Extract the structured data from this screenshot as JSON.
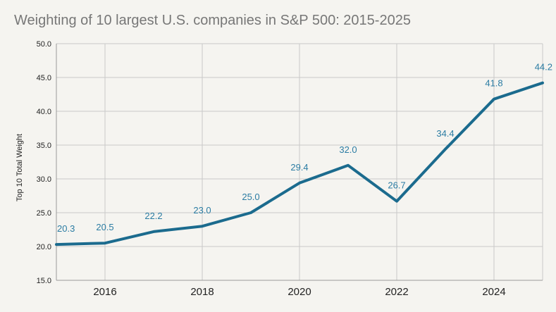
{
  "chart_data": {
    "type": "line",
    "title": "Weighting of 10 largest U.S. companies in S&P 500: 2015-2025",
    "ylabel": "Top 10 Total Weight",
    "xlabel": "",
    "x": [
      2015,
      2016,
      2017,
      2018,
      2019,
      2020,
      2021,
      2022,
      2023,
      2024,
      2025
    ],
    "series": [
      {
        "values": [
          20.3,
          20.5,
          22.2,
          23.0,
          25.0,
          29.4,
          32.0,
          26.7,
          34.4,
          41.8,
          44.2
        ],
        "labels": [
          "20.3",
          "20.5",
          "22.2",
          "23.0",
          "25.0",
          "29.4",
          "32.0",
          "26.7",
          "34.4",
          "41.8",
          "44.2"
        ],
        "color": "#1b6b8e"
      }
    ],
    "xlim": [
      2015,
      2025
    ],
    "ylim": [
      15,
      50
    ],
    "x_ticks": [
      2016,
      2018,
      2020,
      2022,
      2024
    ],
    "x_tick_labels": [
      "2016",
      "2018",
      "2020",
      "2022",
      "2024"
    ],
    "y_ticks": [
      15,
      20,
      25,
      30,
      35,
      40,
      45,
      50
    ],
    "y_tick_labels": [
      "15.0",
      "20.0",
      "25.0",
      "30.0",
      "35.0",
      "40.0",
      "45.0",
      "50.0"
    ],
    "grid": true,
    "label_color": "#2b7ca3",
    "background": "#f5f4f0"
  }
}
